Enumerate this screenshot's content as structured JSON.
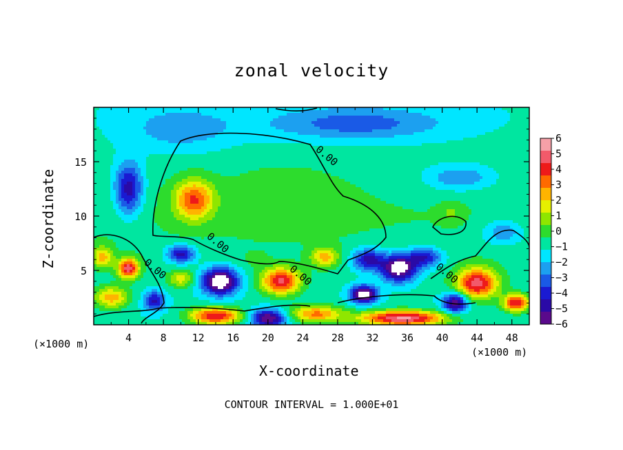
{
  "chart_data": {
    "type": "heatmap",
    "title": "zonal velocity",
    "xlabel": "X-coordinate",
    "ylabel": "Z-coordinate",
    "x_unit": "(×1000 m)",
    "x_ticks": [
      4,
      8,
      12,
      16,
      20,
      24,
      28,
      32,
      36,
      40,
      44,
      48
    ],
    "y_ticks": [
      5,
      10,
      15
    ],
    "xlim": [
      0,
      50
    ],
    "ylim": [
      0,
      20
    ],
    "colorbar": {
      "ticks": [
        6,
        5,
        4,
        3,
        2,
        1,
        0,
        -1,
        -2,
        -3,
        -4,
        -5,
        -6
      ],
      "range": [
        -6,
        6
      ],
      "colors": [
        "#f6a0a8",
        "#f25a6a",
        "#ee1a1a",
        "#ff6a00",
        "#ffb400",
        "#e6f000",
        "#8fe600",
        "#2ddc2d",
        "#00e6a0",
        "#00e6ff",
        "#1ca0f0",
        "#1a5ae6",
        "#1a1ad2",
        "#2a0aa6",
        "#5a0a8c"
      ]
    },
    "contour_labels": [
      {
        "x": 26.5,
        "y": 15.3,
        "text": "0.00"
      },
      {
        "x": 14.0,
        "y": 7.3,
        "text": "0.00"
      },
      {
        "x": 6.8,
        "y": 4.9,
        "text": "0.00"
      },
      {
        "x": 23.5,
        "y": 4.3,
        "text": "0.00"
      },
      {
        "x": 40.3,
        "y": 4.5,
        "text": "0.00"
      }
    ],
    "contour_interval_text": "CONTOUR INTERVAL = 1.000E+01",
    "field_features": [
      {
        "x": 11.5,
        "z": 11.5,
        "value": 4.2,
        "sx": 2.2,
        "sz": 1.8
      },
      {
        "x": 4.0,
        "z": 12.5,
        "value": -4.2,
        "sx": 1.6,
        "sz": 2.4
      },
      {
        "x": 22.0,
        "z": 12.0,
        "value": 0.6,
        "sx": 7.0,
        "sz": 3.5
      },
      {
        "x": 4.0,
        "z": 5.2,
        "value": 5.8,
        "sx": 1.2,
        "sz": 0.9
      },
      {
        "x": 1.0,
        "z": 6.2,
        "value": 3.0,
        "sx": 1.2,
        "sz": 1.0
      },
      {
        "x": 14.5,
        "z": 4.0,
        "value": -6.5,
        "sx": 2.0,
        "sz": 1.2
      },
      {
        "x": 10.0,
        "z": 6.5,
        "value": -4.0,
        "sx": 1.6,
        "sz": 0.8
      },
      {
        "x": 10.0,
        "z": 4.2,
        "value": 2.5,
        "sx": 1.4,
        "sz": 0.8
      },
      {
        "x": 21.5,
        "z": 4.0,
        "value": 5.5,
        "sx": 2.2,
        "sz": 1.2
      },
      {
        "x": 18.5,
        "z": 6.0,
        "value": 0.5,
        "sx": 1.5,
        "sz": 0.8
      },
      {
        "x": 26.5,
        "z": 6.2,
        "value": 3.0,
        "sx": 1.6,
        "sz": 0.9
      },
      {
        "x": 31.0,
        "z": 2.8,
        "value": -6.2,
        "sx": 1.5,
        "sz": 0.8
      },
      {
        "x": 35.0,
        "z": 5.2,
        "value": -6.2,
        "sx": 2.0,
        "sz": 1.2
      },
      {
        "x": 31.5,
        "z": 6.0,
        "value": -4.0,
        "sx": 1.8,
        "sz": 1.0
      },
      {
        "x": 38.0,
        "z": 6.2,
        "value": -3.5,
        "sx": 2.0,
        "sz": 0.9
      },
      {
        "x": 44.0,
        "z": 3.8,
        "value": 5.8,
        "sx": 2.4,
        "sz": 1.4
      },
      {
        "x": 48.5,
        "z": 2.0,
        "value": 5.5,
        "sx": 1.5,
        "sz": 0.8
      },
      {
        "x": 41.5,
        "z": 2.0,
        "value": -5.0,
        "sx": 1.4,
        "sz": 0.9
      },
      {
        "x": 35.5,
        "z": 0.6,
        "value": 6.5,
        "sx": 5.0,
        "sz": 0.7
      },
      {
        "x": 25.5,
        "z": 1.0,
        "value": 4.0,
        "sx": 3.0,
        "sz": 0.8
      },
      {
        "x": 14.0,
        "z": 0.8,
        "value": 5.5,
        "sx": 3.0,
        "sz": 0.8
      },
      {
        "x": 20.0,
        "z": 0.6,
        "value": -5.0,
        "sx": 2.0,
        "sz": 0.8
      },
      {
        "x": 2.0,
        "z": 2.5,
        "value": 3.5,
        "sx": 2.0,
        "sz": 1.0
      },
      {
        "x": 7.0,
        "z": 2.2,
        "value": -3.5,
        "sx": 1.2,
        "sz": 0.9
      },
      {
        "x": 30.0,
        "z": 18.5,
        "value": -2.2,
        "sx": 10.0,
        "sz": 1.5
      },
      {
        "x": 42.0,
        "z": 13.5,
        "value": -2.0,
        "sx": 4.0,
        "sz": 1.2
      },
      {
        "x": 41.0,
        "z": 10.3,
        "value": 1.0,
        "sx": 1.2,
        "sz": 0.8
      },
      {
        "x": 47.0,
        "z": 8.5,
        "value": -2.0,
        "sx": 2.5,
        "sz": 1.2
      },
      {
        "x": 10.0,
        "z": 18.0,
        "value": -1.5,
        "sx": 6.0,
        "sz": 2.0
      }
    ]
  }
}
